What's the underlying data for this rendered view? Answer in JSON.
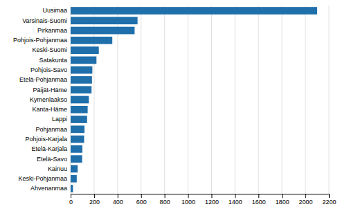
{
  "chart_data": {
    "type": "bar",
    "orientation": "horizontal",
    "categories": [
      "Uusimaa",
      "Varsinais-Suomi",
      "Pirkanmaa",
      "Pohjois-Pohjanmaa",
      "Keski-Suomi",
      "Satakunta",
      "Pohjois-Savo",
      "Etelä-Pohjanmaa",
      "Päijät-Häme",
      "Kymenlaakso",
      "Kanta-Häme",
      "Lappi",
      "Pohjanmaa",
      "Pohjois-Karjala",
      "Etelä-Karjala",
      "Etelä-Savo",
      "Kainuu",
      "Keski-Pohjanmaa",
      "Ahvenanmaa"
    ],
    "values": [
      2100,
      570,
      545,
      355,
      240,
      220,
      185,
      182,
      178,
      155,
      145,
      140,
      118,
      115,
      100,
      98,
      60,
      52,
      20
    ],
    "color": "#1F6FAB",
    "xlim": [
      0,
      2200
    ],
    "xticks": [
      0,
      200,
      400,
      600,
      800,
      1000,
      1200,
      1400,
      1600,
      1800,
      2000,
      2200
    ],
    "grid": true
  }
}
